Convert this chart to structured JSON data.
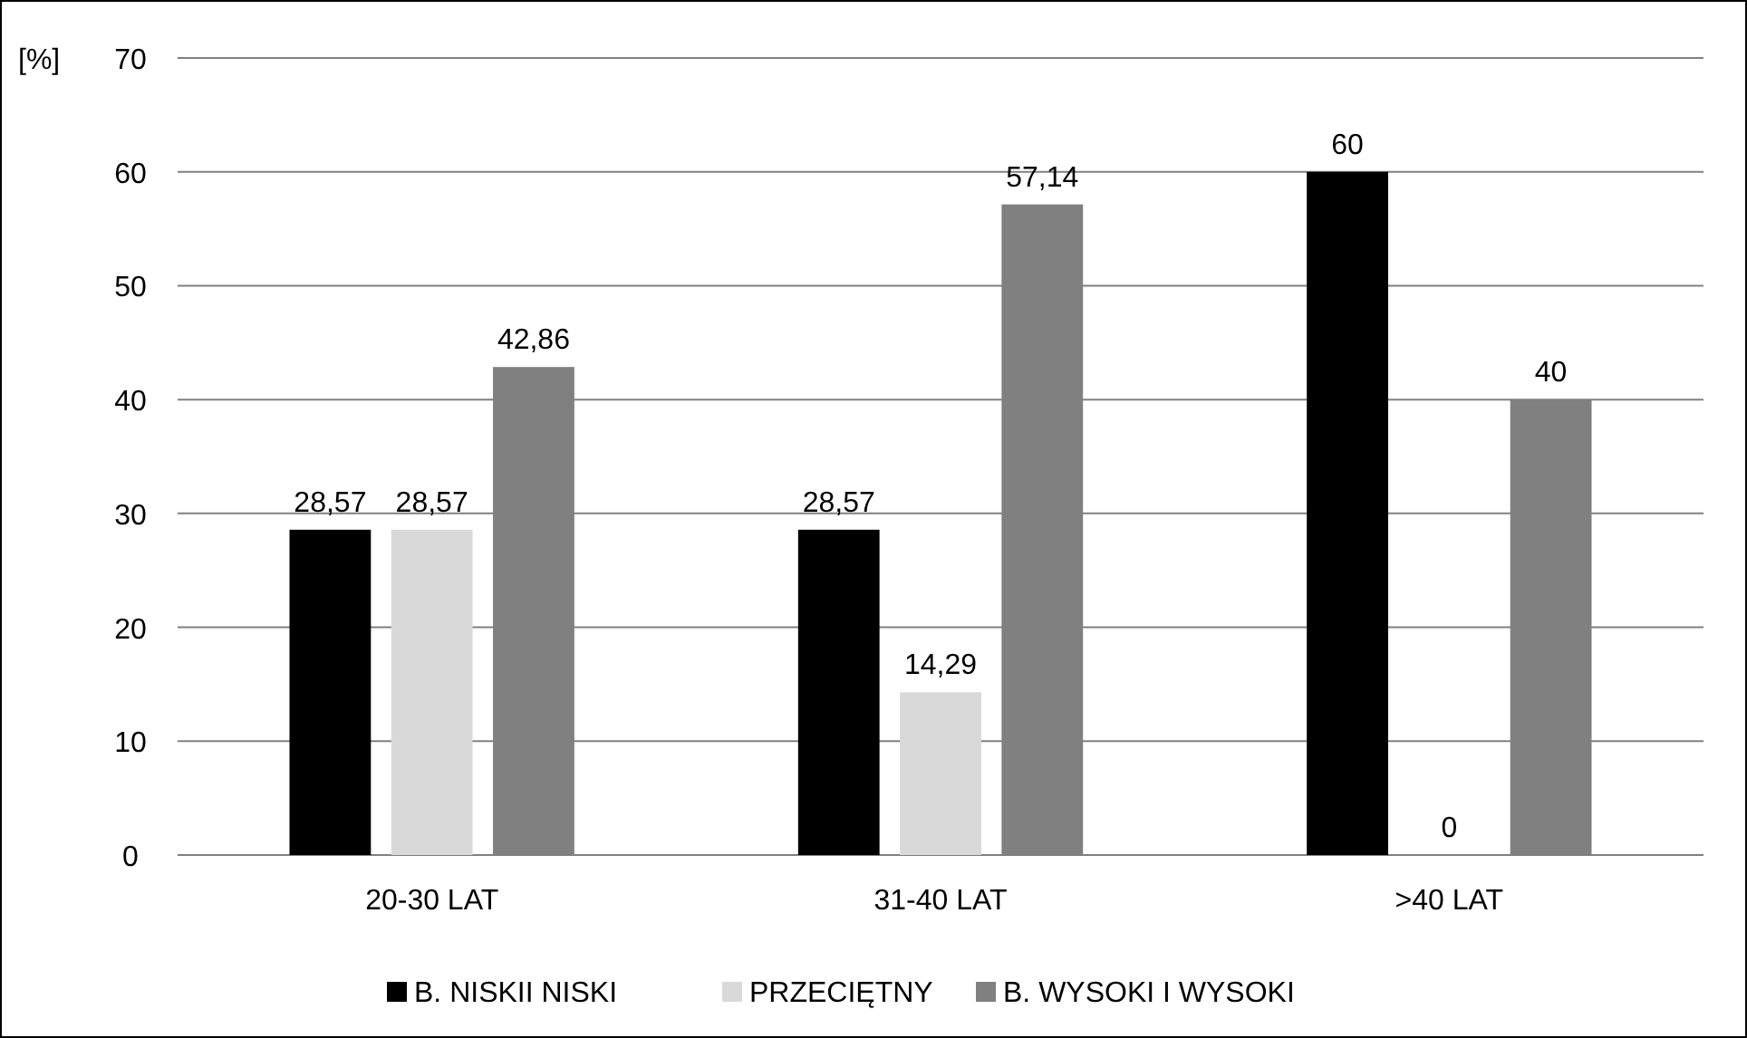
{
  "chart_data": {
    "type": "bar",
    "ylabel": "[%]",
    "categories": [
      "20-30 LAT",
      "31-40 LAT",
      ">40 LAT"
    ],
    "series": [
      {
        "name": "B. NISKII NISKI",
        "color": "#000000",
        "values": [
          28.57,
          28.57,
          60
        ],
        "value_labels": [
          "28,57",
          "28,57",
          "60"
        ]
      },
      {
        "name": "PRZECIĘTNY",
        "color": "#d9d9d9",
        "values": [
          28.57,
          14.29,
          0
        ],
        "value_labels": [
          "28,57",
          "14,29",
          "0"
        ]
      },
      {
        "name": "B. WYSOKI I WYSOKI",
        "color": "#808080",
        "values": [
          42.86,
          57.14,
          40
        ],
        "value_labels": [
          "42,86",
          "57,14",
          "40"
        ]
      }
    ],
    "ylim": [
      0,
      70
    ],
    "yticks": [
      0,
      10,
      20,
      30,
      40,
      50,
      60,
      70
    ],
    "grid": "y",
    "legend": "bottom"
  }
}
